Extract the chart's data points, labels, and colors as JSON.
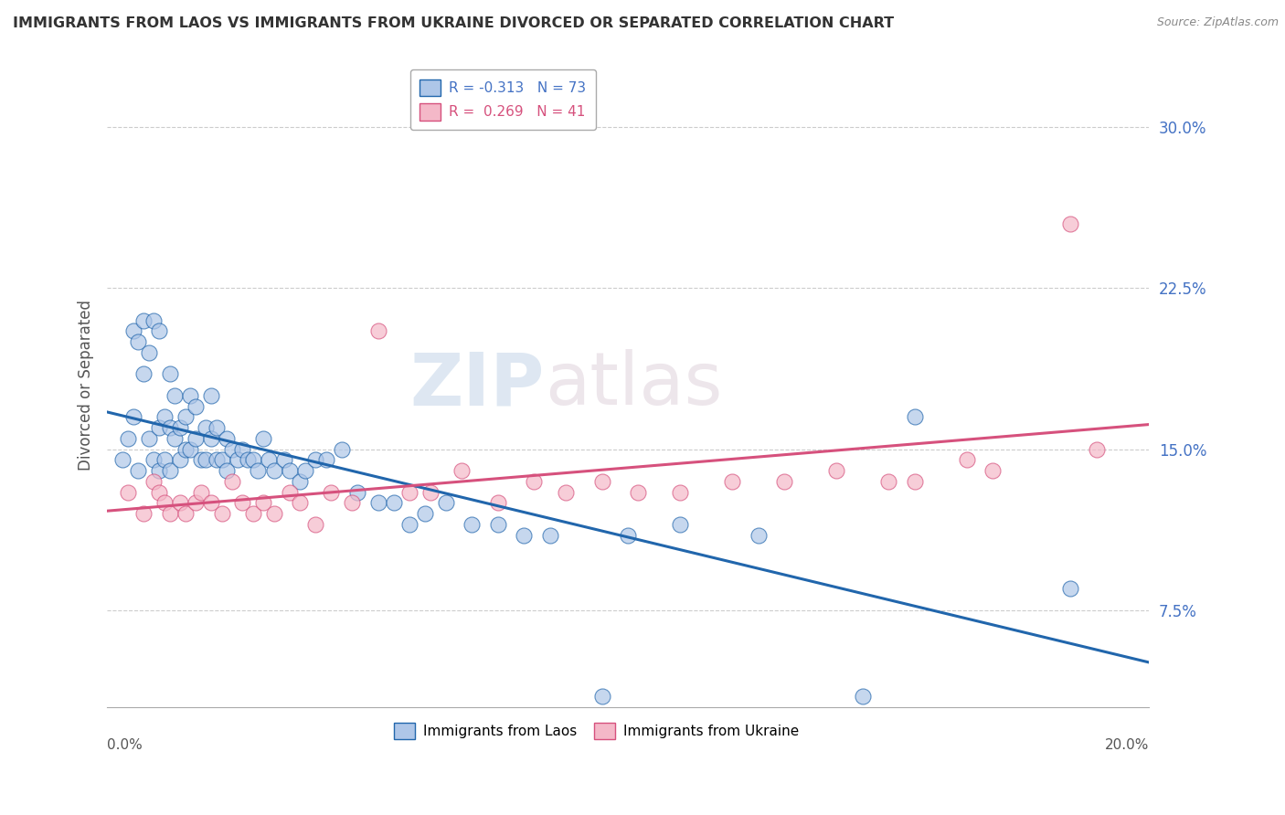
{
  "title": "IMMIGRANTS FROM LAOS VS IMMIGRANTS FROM UKRAINE DIVORCED OR SEPARATED CORRELATION CHART",
  "source": "Source: ZipAtlas.com",
  "ylabel": "Divorced or Separated",
  "yticks": [
    7.5,
    15.0,
    22.5,
    30.0
  ],
  "ytick_labels": [
    "7.5%",
    "15.0%",
    "22.5%",
    "30.0%"
  ],
  "xlim": [
    0.0,
    20.0
  ],
  "ylim": [
    3.0,
    33.0
  ],
  "legend_blue_r": "R = -0.313",
  "legend_blue_n": "N = 73",
  "legend_pink_r": "R = 0.269",
  "legend_pink_n": "N = 41",
  "blue_color": "#aec6e8",
  "pink_color": "#f4b8c8",
  "trend_blue": "#2166ac",
  "trend_pink": "#d6517d",
  "blue_scatter_x": [
    0.3,
    0.4,
    0.5,
    0.5,
    0.6,
    0.6,
    0.7,
    0.7,
    0.8,
    0.8,
    0.9,
    0.9,
    1.0,
    1.0,
    1.0,
    1.1,
    1.1,
    1.2,
    1.2,
    1.2,
    1.3,
    1.3,
    1.4,
    1.4,
    1.5,
    1.5,
    1.6,
    1.6,
    1.7,
    1.7,
    1.8,
    1.9,
    1.9,
    2.0,
    2.0,
    2.1,
    2.1,
    2.2,
    2.3,
    2.3,
    2.4,
    2.5,
    2.6,
    2.7,
    2.8,
    2.9,
    3.0,
    3.1,
    3.2,
    3.4,
    3.5,
    3.7,
    3.8,
    4.0,
    4.2,
    4.5,
    4.8,
    5.2,
    5.5,
    5.8,
    6.1,
    6.5,
    7.0,
    7.5,
    8.0,
    8.5,
    9.5,
    10.0,
    11.0,
    12.5,
    14.5,
    15.5,
    18.5
  ],
  "blue_scatter_y": [
    14.5,
    15.5,
    16.5,
    20.5,
    14.0,
    20.0,
    18.5,
    21.0,
    15.5,
    19.5,
    14.5,
    21.0,
    14.0,
    16.0,
    20.5,
    14.5,
    16.5,
    14.0,
    16.0,
    18.5,
    15.5,
    17.5,
    14.5,
    16.0,
    15.0,
    16.5,
    15.0,
    17.5,
    15.5,
    17.0,
    14.5,
    16.0,
    14.5,
    15.5,
    17.5,
    14.5,
    16.0,
    14.5,
    14.0,
    15.5,
    15.0,
    14.5,
    15.0,
    14.5,
    14.5,
    14.0,
    15.5,
    14.5,
    14.0,
    14.5,
    14.0,
    13.5,
    14.0,
    14.5,
    14.5,
    15.0,
    13.0,
    12.5,
    12.5,
    11.5,
    12.0,
    12.5,
    11.5,
    11.5,
    11.0,
    11.0,
    3.5,
    11.0,
    11.5,
    11.0,
    3.5,
    16.5,
    8.5
  ],
  "pink_scatter_x": [
    0.4,
    0.7,
    0.9,
    1.0,
    1.1,
    1.2,
    1.4,
    1.5,
    1.7,
    1.8,
    2.0,
    2.2,
    2.4,
    2.6,
    2.8,
    3.0,
    3.2,
    3.5,
    3.7,
    4.0,
    4.3,
    4.7,
    5.2,
    5.8,
    6.2,
    6.8,
    7.5,
    8.2,
    8.8,
    9.5,
    10.2,
    11.0,
    12.0,
    13.0,
    14.0,
    15.0,
    15.5,
    16.5,
    17.0,
    18.5,
    19.0
  ],
  "pink_scatter_y": [
    13.0,
    12.0,
    13.5,
    13.0,
    12.5,
    12.0,
    12.5,
    12.0,
    12.5,
    13.0,
    12.5,
    12.0,
    13.5,
    12.5,
    12.0,
    12.5,
    12.0,
    13.0,
    12.5,
    11.5,
    13.0,
    12.5,
    20.5,
    13.0,
    13.0,
    14.0,
    12.5,
    13.5,
    13.0,
    13.5,
    13.0,
    13.0,
    13.5,
    13.5,
    14.0,
    13.5,
    13.5,
    14.5,
    14.0,
    25.5,
    15.0
  ],
  "watermark_zip": "ZIP",
  "watermark_atlas": "atlas",
  "background_color": "#ffffff",
  "grid_color": "#cccccc"
}
